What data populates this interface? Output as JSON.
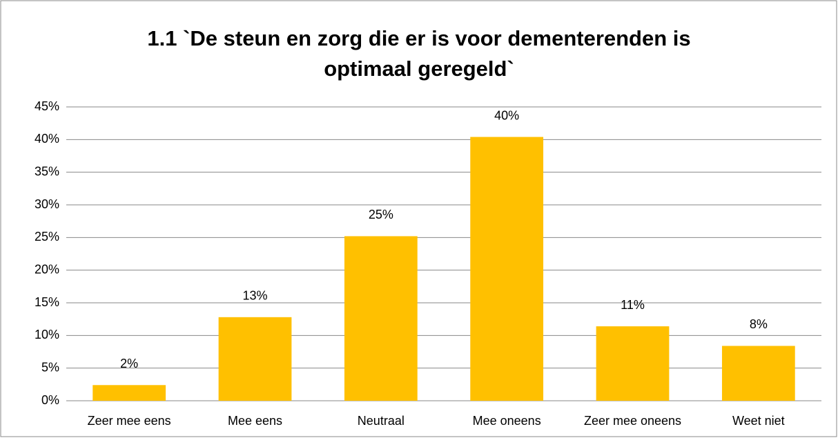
{
  "chart_data": {
    "type": "bar",
    "title": "1.1 `De steun en zorg die er is voor dementerenden is optimaal geregeld`",
    "categories": [
      "Zeer mee eens",
      "Mee eens",
      "Neutraal",
      "Mee oneens",
      "Zeer mee oneens",
      "Weet niet"
    ],
    "values": [
      2.4,
      12.8,
      25.2,
      40.4,
      11.4,
      8.4
    ],
    "value_labels": [
      "2%",
      "13%",
      "25%",
      "40%",
      "11%",
      "8%"
    ],
    "color": "#ffc000",
    "ylim": [
      0,
      45
    ],
    "yticks": [
      {
        "value": 0,
        "label": "0%"
      },
      {
        "value": 5,
        "label": "5%"
      },
      {
        "value": 10,
        "label": "10%"
      },
      {
        "value": 15,
        "label": "15%"
      },
      {
        "value": 20,
        "label": "20%"
      },
      {
        "value": 25,
        "label": "25%"
      },
      {
        "value": 30,
        "label": "30%"
      },
      {
        "value": 35,
        "label": "35%"
      },
      {
        "value": 40,
        "label": "40%"
      },
      {
        "value": 45,
        "label": "45%"
      }
    ],
    "grid": true
  }
}
